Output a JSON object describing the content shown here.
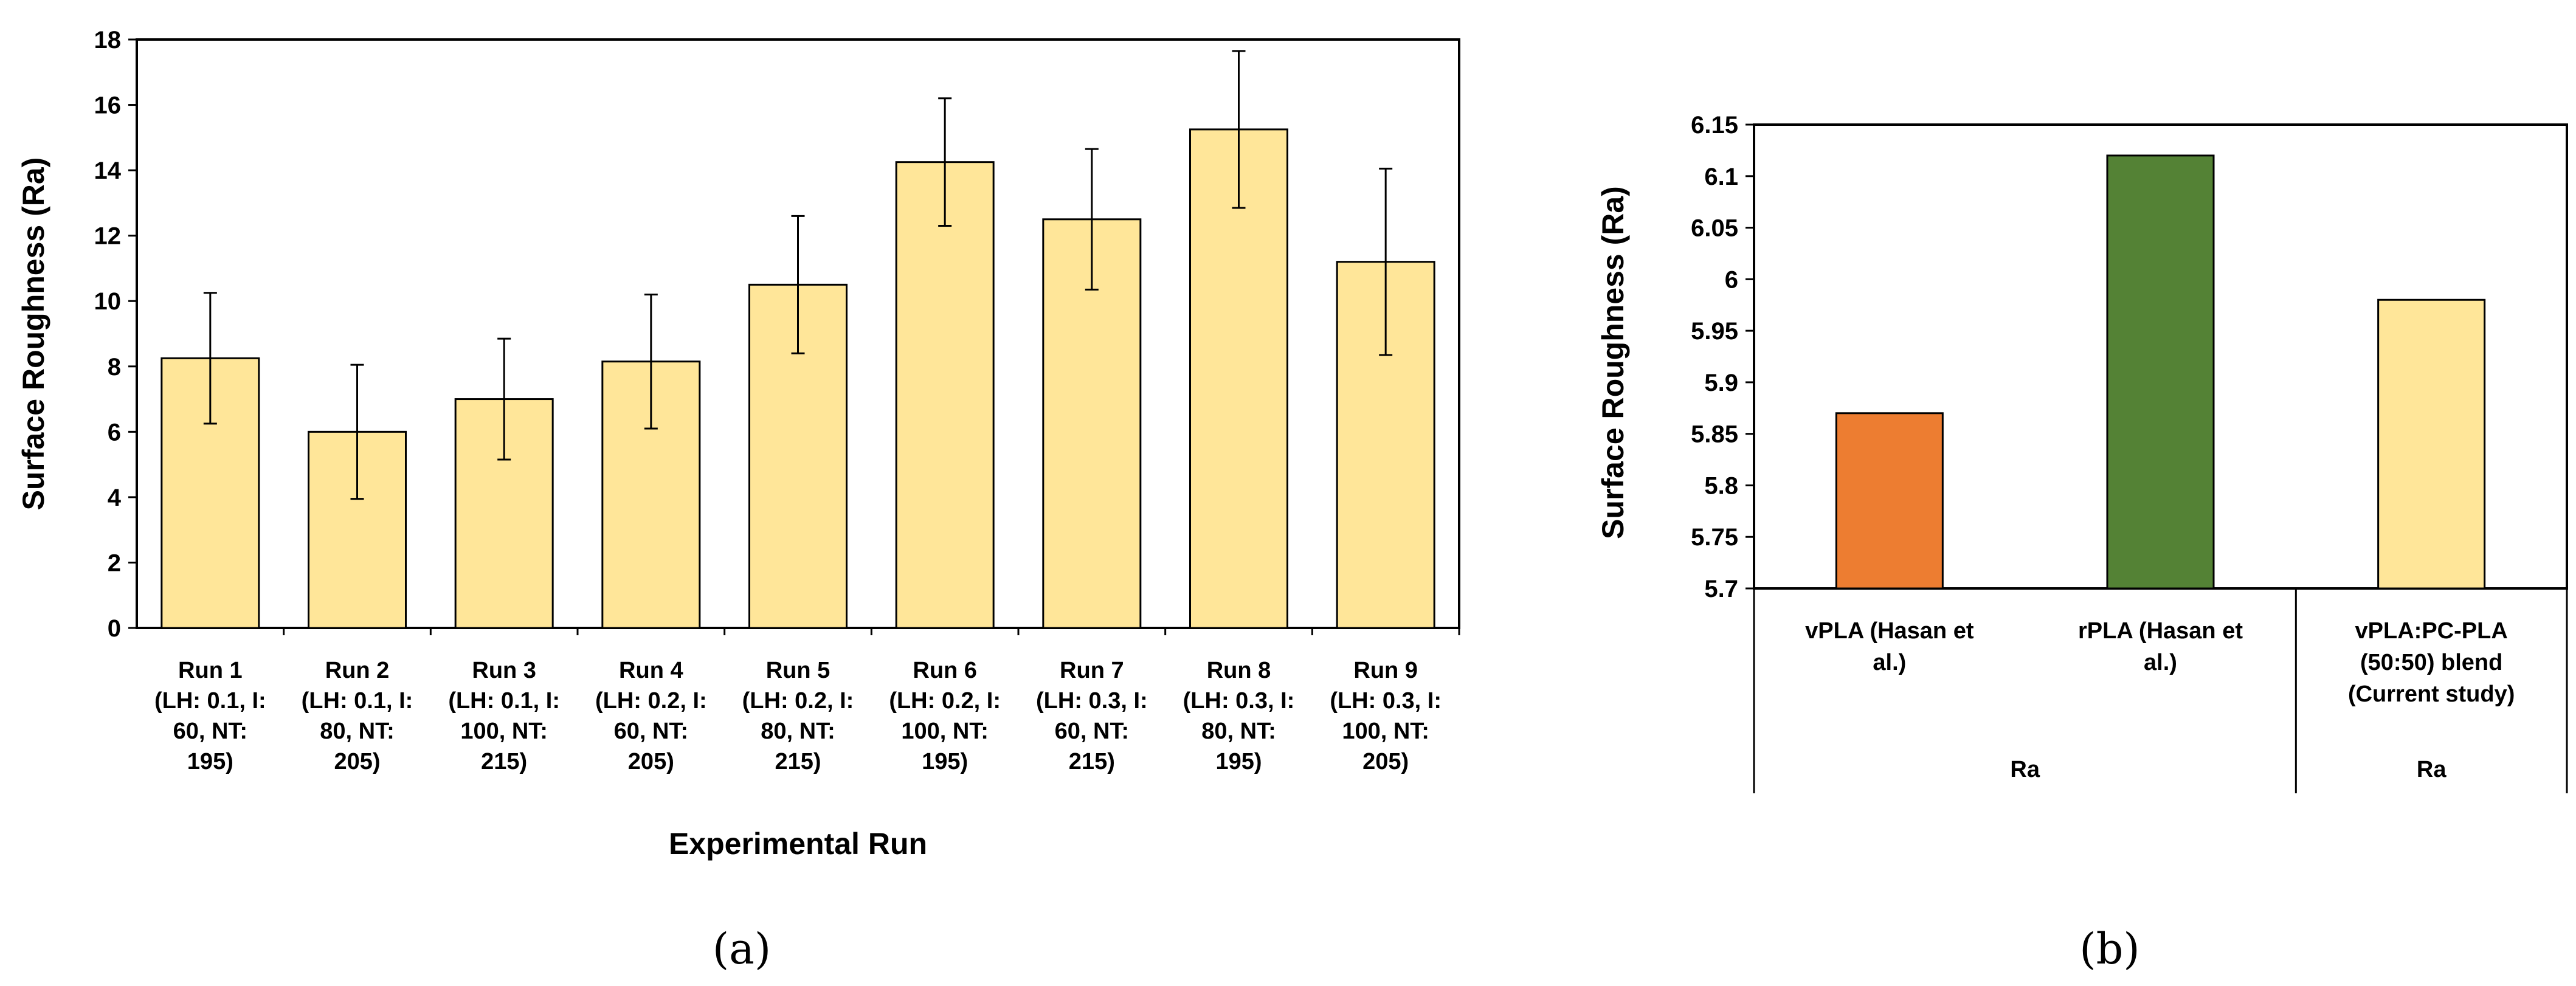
{
  "chart_data": [
    {
      "type": "bar",
      "panel_label": "(a)",
      "xlabel": "Experimental Run",
      "ylabel": "Surface Roughness (Ra)",
      "ylim": [
        0,
        18
      ],
      "yticks": [
        "0",
        "2",
        "4",
        "6",
        "8",
        "10",
        "12",
        "14",
        "16",
        "18"
      ],
      "categories": [
        [
          "Run 1",
          "(LH: 0.1, I:",
          "60, NT:",
          "195)"
        ],
        [
          "Run 2",
          "(LH: 0.1, I:",
          "80, NT:",
          "205)"
        ],
        [
          "Run 3",
          "(LH: 0.1, I:",
          "100, NT:",
          "215)"
        ],
        [
          "Run 4",
          "(LH: 0.2, I:",
          "60, NT:",
          "205)"
        ],
        [
          "Run 5",
          "(LH: 0.2, I:",
          "80, NT:",
          "215)"
        ],
        [
          "Run 6",
          "(LH: 0.2, I:",
          "100, NT:",
          "195)"
        ],
        [
          "Run 7",
          "(LH: 0.3, I:",
          "60, NT:",
          "215)"
        ],
        [
          "Run 8",
          "(LH: 0.3, I:",
          "80, NT:",
          "195)"
        ],
        [
          "Run 9",
          "(LH: 0.3, I:",
          "100, NT:",
          "205)"
        ]
      ],
      "values": [
        8.25,
        6.0,
        7.0,
        8.15,
        10.5,
        14.25,
        12.5,
        15.25,
        11.2
      ],
      "error": [
        2.0,
        2.05,
        1.85,
        2.05,
        2.1,
        1.95,
        2.15,
        2.4,
        2.85
      ],
      "bar_color": "#FFE699",
      "grid": false,
      "legend": "none"
    },
    {
      "type": "bar",
      "panel_label": "(b)",
      "xlabel": "",
      "ylabel": "Surface Roughness (Ra)",
      "ylim": [
        5.7,
        6.15
      ],
      "yticks": [
        "5.7",
        "5.75",
        "5.8",
        "5.85",
        "5.9",
        "5.95",
        "6",
        "6.05",
        "6.1",
        "6.15"
      ],
      "categories": [
        [
          "vPLA (Hasan et",
          "al.)"
        ],
        [
          "rPLA (Hasan et",
          "al.)"
        ],
        [
          "vPLA:PC-PLA",
          "(50:50) blend",
          "(Current study)"
        ]
      ],
      "group_labels": [
        "Ra",
        "Ra"
      ],
      "values": [
        5.87,
        6.12,
        5.98
      ],
      "bar_colors": [
        "#ED7D31",
        "#548235",
        "#FFE699"
      ],
      "grid": false,
      "legend": "none"
    }
  ]
}
